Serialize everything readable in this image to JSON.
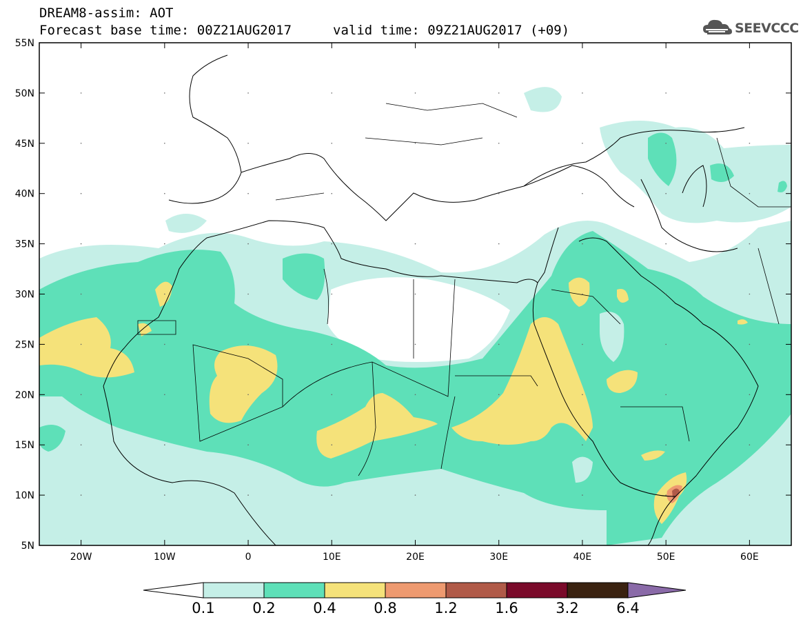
{
  "header": {
    "title_line1": "DREAM8-assim: AOT",
    "base_time": "Forecast base time: 00Z21AUG2017",
    "valid_time": "valid time: 09Z21AUG2017 (+09)",
    "logo_text": "SEEVCCC"
  },
  "map": {
    "lat_labels": [
      "55N",
      "50N",
      "45N",
      "40N",
      "35N",
      "30N",
      "25N",
      "20N",
      "15N",
      "10N",
      "5N"
    ],
    "lon_labels": [
      "20W",
      "10W",
      "0",
      "10E",
      "20E",
      "30E",
      "40E",
      "50E",
      "60E"
    ],
    "extent": {
      "lon": [
        -25,
        65
      ],
      "lat": [
        5,
        55
      ]
    }
  },
  "colorbar": {
    "levels": [
      "0.1",
      "0.2",
      "0.4",
      "0.8",
      "1.2",
      "1.6",
      "3.2",
      "6.4"
    ],
    "colors": [
      "#ffffff",
      "#c5efe7",
      "#5ee0b8",
      "#f5e27a",
      "#ee9a70",
      "#b05a48",
      "#7a0a2a",
      "#3a2210",
      "#8a6aa8"
    ]
  }
}
